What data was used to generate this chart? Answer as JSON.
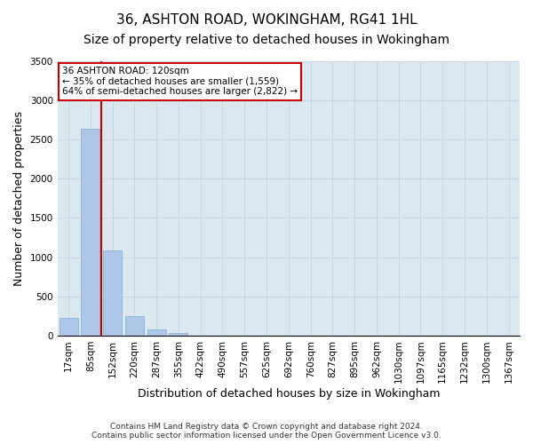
{
  "title_line1": "36, ASHTON ROAD, WOKINGHAM, RG41 1HL",
  "title_line2": "Size of property relative to detached houses in Wokingham",
  "xlabel": "Distribution of detached houses by size in Wokingham",
  "ylabel": "Number of detached properties",
  "footnote": "Contains HM Land Registry data © Crown copyright and database right 2024.\nContains public sector information licensed under the Open Government Licence v3.0.",
  "bar_labels": [
    "17sqm",
    "85sqm",
    "152sqm",
    "220sqm",
    "287sqm",
    "355sqm",
    "422sqm",
    "490sqm",
    "557sqm",
    "625sqm",
    "692sqm",
    "760sqm",
    "827sqm",
    "895sqm",
    "962sqm",
    "1030sqm",
    "1097sqm",
    "1165sqm",
    "1232sqm",
    "1300sqm",
    "1367sqm"
  ],
  "bar_values": [
    220,
    2640,
    1090,
    250,
    80,
    30,
    0,
    0,
    0,
    0,
    0,
    0,
    0,
    0,
    0,
    0,
    0,
    0,
    0,
    0,
    0
  ],
  "bar_color": "#aec6e8",
  "bar_edge_color": "#7aafd4",
  "grid_color": "#c8d8e8",
  "background_color": "#dce8f0",
  "vline_color": "#cc0000",
  "annotation_text": "36 ASHTON ROAD: 120sqm\n← 35% of detached houses are smaller (1,559)\n64% of semi-detached houses are larger (2,822) →",
  "annotation_box_color": "#cc0000",
  "ylim": [
    0,
    3500
  ],
  "yticks": [
    0,
    500,
    1000,
    1500,
    2000,
    2500,
    3000,
    3500
  ],
  "title_fontsize": 11,
  "subtitle_fontsize": 10,
  "axis_label_fontsize": 9,
  "tick_fontsize": 7.5
}
